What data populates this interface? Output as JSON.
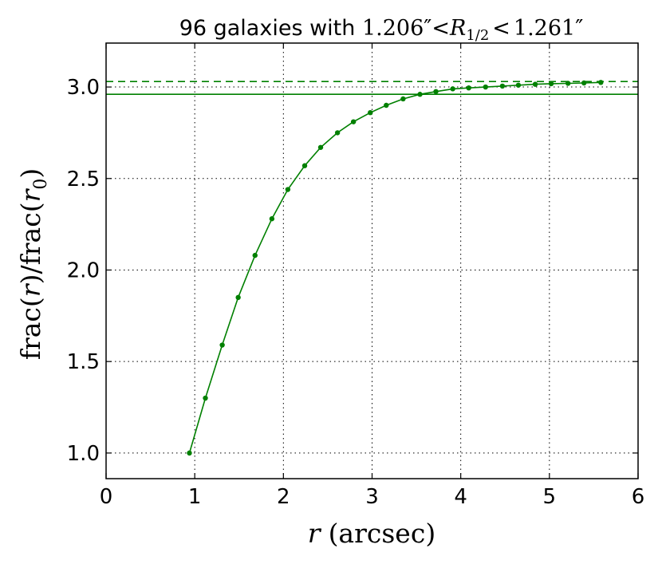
{
  "chart_data": {
    "type": "line",
    "title": {
      "prefix": "96 galaxies with ",
      "low": "1.206″",
      "lt1": "<",
      "var": "R",
      "sub": "1/2",
      "lt2": "<",
      "high": "1.261″"
    },
    "xlabel": {
      "var": "r",
      "unit": "(arcsec)"
    },
    "ylabel": {
      "pre": "frac(",
      "var1": "r",
      "mid": ")/frac(",
      "var2": "r",
      "sub": "0",
      "post": ")"
    },
    "xlim": [
      0,
      6
    ],
    "ylim": [
      0.86,
      3.24
    ],
    "x_ticks": [
      0,
      1,
      2,
      3,
      4,
      5,
      6
    ],
    "x_tick_labels": [
      "0",
      "1",
      "2",
      "3",
      "4",
      "5",
      "6"
    ],
    "y_ticks": [
      1.0,
      1.5,
      2.0,
      2.5,
      3.0
    ],
    "y_tick_labels": [
      "1.0",
      "1.5",
      "2.0",
      "2.5",
      "3.0"
    ],
    "grid": true,
    "color": "#008000",
    "series": [
      {
        "style": "line-with-markers",
        "x": [
          0.94,
          1.12,
          1.31,
          1.49,
          1.68,
          1.87,
          2.05,
          2.24,
          2.42,
          2.61,
          2.79,
          2.98,
          3.16,
          3.35,
          3.54,
          3.72,
          3.91,
          4.09,
          4.28,
          4.47,
          4.65,
          4.84,
          5.02,
          5.21,
          5.39,
          5.58
        ],
        "y": [
          1.0,
          1.3,
          1.59,
          1.85,
          2.08,
          2.28,
          2.44,
          2.57,
          2.67,
          2.75,
          2.81,
          2.86,
          2.9,
          2.935,
          2.96,
          2.975,
          2.99,
          2.995,
          3.0,
          3.005,
          3.01,
          3.015,
          3.018,
          3.02,
          3.022,
          3.025
        ]
      }
    ],
    "hlines": [
      {
        "y": 3.03,
        "style": "dashed"
      },
      {
        "y": 2.96,
        "style": "solid"
      }
    ]
  }
}
